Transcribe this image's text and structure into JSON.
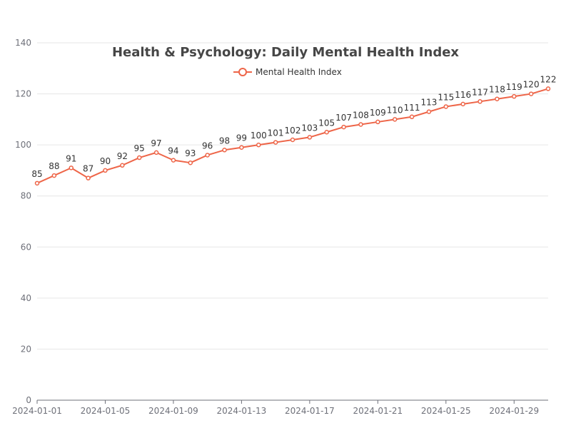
{
  "chart_data": {
    "type": "line",
    "title": "Health & Psychology: Daily Mental Health Index",
    "xlabel": "",
    "ylabel": "",
    "ylim": [
      0,
      140
    ],
    "yticks": [
      0,
      20,
      40,
      60,
      80,
      100,
      120,
      140
    ],
    "x": [
      "2024-01-01",
      "2024-01-02",
      "2024-01-03",
      "2024-01-04",
      "2024-01-05",
      "2024-01-06",
      "2024-01-07",
      "2024-01-08",
      "2024-01-09",
      "2024-01-10",
      "2024-01-11",
      "2024-01-12",
      "2024-01-13",
      "2024-01-14",
      "2024-01-15",
      "2024-01-16",
      "2024-01-17",
      "2024-01-18",
      "2024-01-19",
      "2024-01-20",
      "2024-01-21",
      "2024-01-22",
      "2024-01-23",
      "2024-01-24",
      "2024-01-25",
      "2024-01-26",
      "2024-01-27",
      "2024-01-28",
      "2024-01-29",
      "2024-01-30",
      "2024-01-31"
    ],
    "xtick_labels": [
      "2024-01-01",
      "2024-01-05",
      "2024-01-09",
      "2024-01-13",
      "2024-01-17",
      "2024-01-21",
      "2024-01-25",
      "2024-01-29"
    ],
    "series": [
      {
        "name": "Mental Health Index",
        "color": "#ee6548",
        "values": [
          85,
          88,
          91,
          87,
          90,
          92,
          95,
          97,
          94,
          93,
          96,
          98,
          99,
          100,
          101,
          102,
          103,
          105,
          107,
          108,
          109,
          110,
          111,
          113,
          115,
          116,
          117,
          118,
          119,
          120,
          122
        ]
      }
    ],
    "grid": true,
    "legend_position": "top-center"
  }
}
